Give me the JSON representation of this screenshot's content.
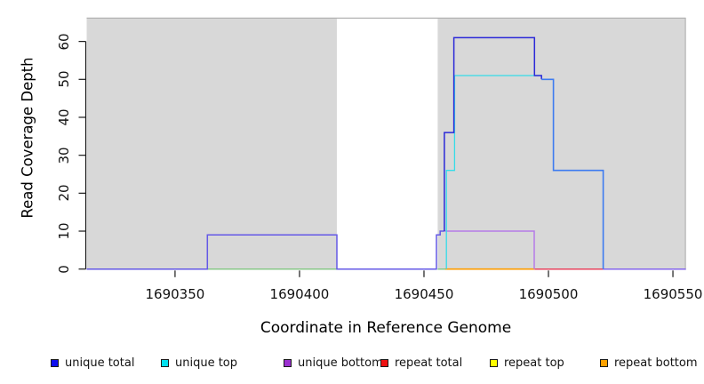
{
  "chart_data": {
    "type": "line",
    "step": true,
    "title": "",
    "xlabel": "Coordinate in Reference Genome",
    "ylabel": "Read Coverage Depth",
    "xlim": [
      1690314.5,
      1690555.2
    ],
    "ylim": [
      0,
      66
    ],
    "x_ticks": [
      1690350,
      1690400,
      1690450,
      1690500,
      1690550
    ],
    "y_ticks": [
      0,
      10,
      20,
      30,
      40,
      50,
      60
    ],
    "grid": false,
    "legend_position": "bottom",
    "background_bands": [
      {
        "from": 1690314.5,
        "to": 1690415,
        "color": "#d8d8d8"
      },
      {
        "from": 1690455.5,
        "to": 1690555.2,
        "color": "#d8d8d8"
      }
    ],
    "band_border_color": "#b2b2b2",
    "series": [
      {
        "name": "unique total",
        "color": "#0d0dee",
        "steps": [
          [
            1690314,
            0
          ],
          [
            1690363,
            9
          ],
          [
            1690415,
            0
          ],
          [
            1690455,
            9
          ],
          [
            1690456,
            10
          ],
          [
            1690458,
            36
          ],
          [
            1690462,
            61
          ],
          [
            1690494,
            51
          ],
          [
            1690497,
            50
          ],
          [
            1690502,
            26
          ],
          [
            1690522,
            0
          ],
          [
            1690555,
            0
          ]
        ]
      },
      {
        "name": "unique top",
        "color": "#00e0ee",
        "steps": [
          [
            1690314,
            0
          ],
          [
            1690459,
            26
          ],
          [
            1690462,
            51
          ],
          [
            1690497,
            50
          ],
          [
            1690502,
            26
          ],
          [
            1690522,
            0
          ],
          [
            1690555,
            0
          ]
        ]
      },
      {
        "name": "unique bottom",
        "color": "#9b30d0",
        "steps": [
          [
            1690314,
            0
          ],
          [
            1690363,
            9
          ],
          [
            1690415,
            0
          ],
          [
            1690455,
            9
          ],
          [
            1690456,
            10
          ],
          [
            1690494,
            0
          ],
          [
            1690555,
            0
          ]
        ]
      },
      {
        "name": "repeat total",
        "color": "#ee1111",
        "steps": [
          [
            1690314,
            0
          ],
          [
            1690555,
            0
          ]
        ]
      },
      {
        "name": "repeat top",
        "color": "#ffff00",
        "steps": [
          [
            1690314,
            0
          ],
          [
            1690555,
            0
          ]
        ]
      },
      {
        "name": "repeat bottom",
        "color": "#ffa200",
        "steps": [
          [
            1690314,
            0
          ],
          [
            1690555,
            0
          ]
        ]
      }
    ],
    "render_segments": [
      {
        "color": "#85c885",
        "w": 1.4,
        "pts": [
          [
            1690363,
            0
          ],
          [
            1690415,
            0
          ]
        ]
      },
      {
        "color": "#85c885",
        "w": 1.4,
        "pts": [
          [
            1690455.5,
            0
          ],
          [
            1690459,
            0
          ]
        ]
      },
      {
        "color": "#ff9e00",
        "w": 1.6,
        "pts": [
          [
            1690458.5,
            0
          ],
          [
            1690494.5,
            0
          ]
        ]
      },
      {
        "color": "#e84560",
        "w": 1.5,
        "pts": [
          [
            1690494.5,
            0
          ],
          [
            1690522,
            0
          ]
        ]
      },
      {
        "color": "#8767ee",
        "w": 1.5,
        "pts": [
          [
            1690522,
            0
          ],
          [
            1690555.2,
            0
          ]
        ]
      },
      {
        "color": "#6459e6",
        "w": 1.5,
        "pts": [
          [
            1690314.5,
            0
          ],
          [
            1690363,
            0
          ],
          [
            1690363,
            9
          ],
          [
            1690415,
            9
          ],
          [
            1690415,
            0
          ],
          [
            1690455,
            0
          ],
          [
            1690455,
            9
          ],
          [
            1690456.5,
            9
          ],
          [
            1690456.5,
            10
          ],
          [
            1690458.3,
            10
          ]
        ]
      },
      {
        "color": "#b57ae8",
        "w": 1.5,
        "pts": [
          [
            1690458.3,
            10
          ],
          [
            1690494.3,
            10
          ],
          [
            1690494.3,
            0
          ]
        ]
      },
      {
        "color": "#35dce8",
        "w": 1.3,
        "pts": [
          [
            1690459,
            0
          ],
          [
            1690459,
            26
          ],
          [
            1690462.3,
            26
          ],
          [
            1690462.3,
            51
          ],
          [
            1690497.3,
            51
          ]
        ]
      },
      {
        "color": "#2b28d8",
        "w": 1.5,
        "pts": [
          [
            1690458.2,
            10
          ],
          [
            1690458.2,
            36
          ],
          [
            1690462,
            36
          ],
          [
            1690462,
            61
          ],
          [
            1690494.4,
            61
          ],
          [
            1690494.4,
            51
          ],
          [
            1690497.2,
            51
          ],
          [
            1690497.2,
            50
          ]
        ]
      },
      {
        "color": "#3d7bf0",
        "w": 1.6,
        "pts": [
          [
            1690497.2,
            50
          ],
          [
            1690502,
            50
          ],
          [
            1690502,
            26
          ],
          [
            1690522,
            26
          ],
          [
            1690522,
            0
          ]
        ]
      }
    ]
  },
  "legend": {
    "items": [
      {
        "label": "unique total",
        "color": "#0d0dee"
      },
      {
        "label": "unique top",
        "color": "#00e0ee"
      },
      {
        "label": "unique bottom",
        "color": "#9b30d0"
      },
      {
        "label": "repeat total",
        "color": "#ee1111"
      },
      {
        "label": "repeat top",
        "color": "#ffff00"
      },
      {
        "label": "repeat bottom",
        "color": "#ffa200"
      }
    ]
  }
}
